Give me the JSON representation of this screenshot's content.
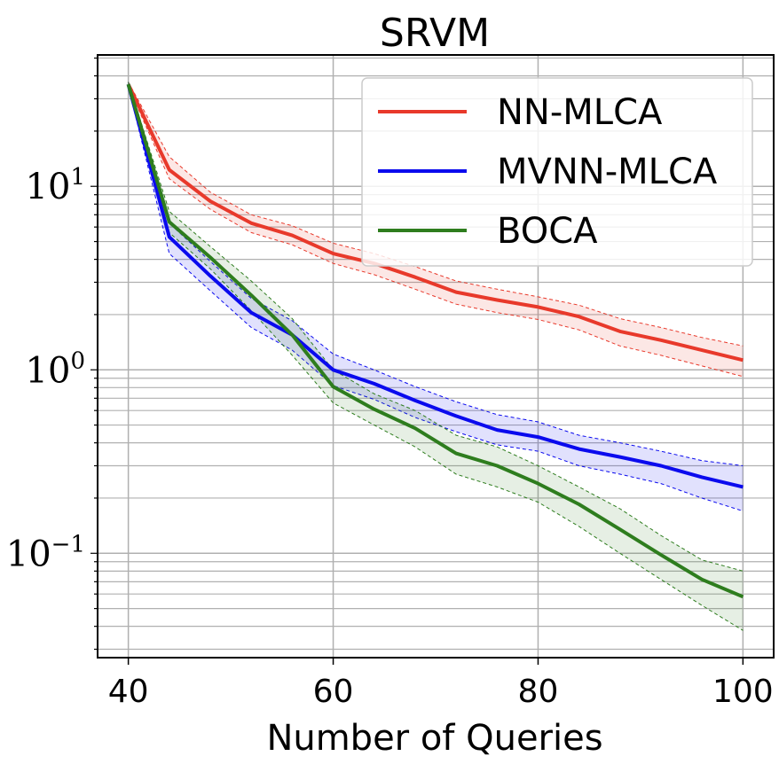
{
  "chart_data": {
    "type": "line",
    "title": "SRVM",
    "xlabel": "Number of Queries",
    "ylabel": "",
    "yscale": "log",
    "xlim": [
      37,
      103
    ],
    "ylim": [
      0.027,
      52
    ],
    "xticks": [
      40,
      60,
      80,
      100
    ],
    "xtick_labels": [
      "40",
      "60",
      "80",
      "100"
    ],
    "yticks": [
      0.1,
      1,
      10
    ],
    "ytick_labels": [
      {
        "base": "10",
        "exp": "−1"
      },
      {
        "base": "10",
        "exp": "0"
      },
      {
        "base": "10",
        "exp": "1"
      }
    ],
    "grid": true,
    "legend_position": "top-right",
    "x": [
      40,
      44,
      48,
      52,
      56,
      60,
      64,
      68,
      72,
      76,
      80,
      84,
      88,
      92,
      96,
      100
    ],
    "series": [
      {
        "name": "NN-MLCA",
        "color": "#e8392b",
        "values": [
          36,
          12.3,
          8.3,
          6.3,
          5.4,
          4.3,
          3.8,
          3.2,
          2.65,
          2.4,
          2.2,
          1.95,
          1.62,
          1.45,
          1.28,
          1.13
        ],
        "lower": [
          35,
          11.0,
          7.5,
          5.6,
          4.8,
          3.8,
          3.3,
          2.75,
          2.28,
          2.05,
          1.88,
          1.65,
          1.35,
          1.2,
          1.05,
          0.92
        ],
        "upper": [
          37,
          14.5,
          9.3,
          7.0,
          6.1,
          4.9,
          4.3,
          3.65,
          3.05,
          2.75,
          2.5,
          2.25,
          1.9,
          1.7,
          1.5,
          1.35
        ]
      },
      {
        "name": "MVNN-MLCA",
        "color": "#0a0aee",
        "values": [
          36,
          5.3,
          3.25,
          2.05,
          1.55,
          1.0,
          0.84,
          0.68,
          0.56,
          0.47,
          0.43,
          0.37,
          0.335,
          0.3,
          0.26,
          0.23
        ],
        "lower": [
          35,
          4.3,
          2.7,
          1.7,
          1.28,
          0.82,
          0.69,
          0.55,
          0.46,
          0.39,
          0.36,
          0.3,
          0.27,
          0.24,
          0.2,
          0.17
        ],
        "upper": [
          37,
          6.3,
          3.9,
          2.45,
          1.85,
          1.22,
          1.0,
          0.81,
          0.67,
          0.57,
          0.52,
          0.44,
          0.4,
          0.36,
          0.32,
          0.3
        ]
      },
      {
        "name": "BOCA",
        "color": "#2e7d1e",
        "values": [
          36,
          6.4,
          4.1,
          2.55,
          1.55,
          0.81,
          0.61,
          0.48,
          0.35,
          0.3,
          0.24,
          0.185,
          0.135,
          0.098,
          0.072,
          0.058
        ],
        "lower": [
          35,
          5.6,
          3.55,
          2.1,
          1.2,
          0.66,
          0.5,
          0.38,
          0.27,
          0.23,
          0.19,
          0.14,
          0.1,
          0.072,
          0.052,
          0.038
        ],
        "upper": [
          37,
          7.3,
          4.7,
          3.05,
          1.9,
          1.0,
          0.74,
          0.6,
          0.44,
          0.38,
          0.3,
          0.23,
          0.175,
          0.125,
          0.092,
          0.08
        ]
      }
    ]
  }
}
